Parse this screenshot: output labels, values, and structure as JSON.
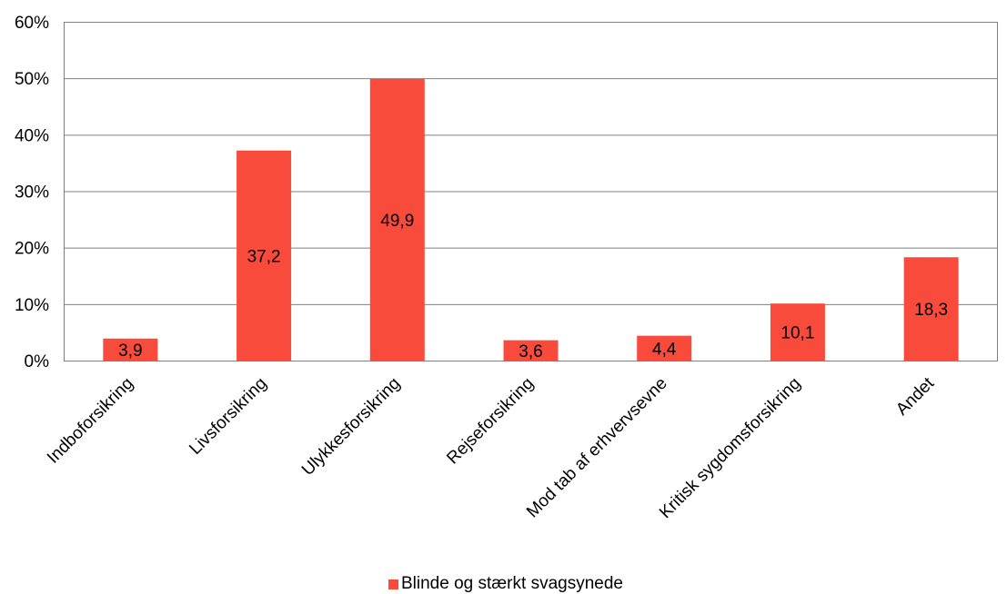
{
  "chart_data": {
    "type": "bar",
    "title": "",
    "xlabel": "",
    "ylabel": "",
    "categories": [
      "Indboforsikring",
      "Livsforsikring",
      "Ulykkesforsikring",
      "Rejseforsikring",
      "Mod tab af erhvervsevne",
      "Kritisk sygdomsforsikring",
      "Andet"
    ],
    "series": [
      {
        "name": "Blinde og stærkt svagsynede",
        "values": [
          3.9,
          37.2,
          49.9,
          3.6,
          4.4,
          10.1,
          18.3
        ],
        "data_labels": [
          "3,9",
          "37,2",
          "49,9",
          "3,6",
          "4,4",
          "10,1",
          "18,3"
        ],
        "color": "#F94B3C"
      }
    ],
    "ylim": [
      0,
      60
    ],
    "y_ticks": [
      0,
      10,
      20,
      30,
      40,
      50,
      60
    ],
    "y_tick_labels": [
      "0%",
      "10%",
      "20%",
      "30%",
      "40%",
      "50%",
      "60%"
    ],
    "grid": true,
    "gridline_color": "#808080",
    "legend_position": "bottom"
  }
}
